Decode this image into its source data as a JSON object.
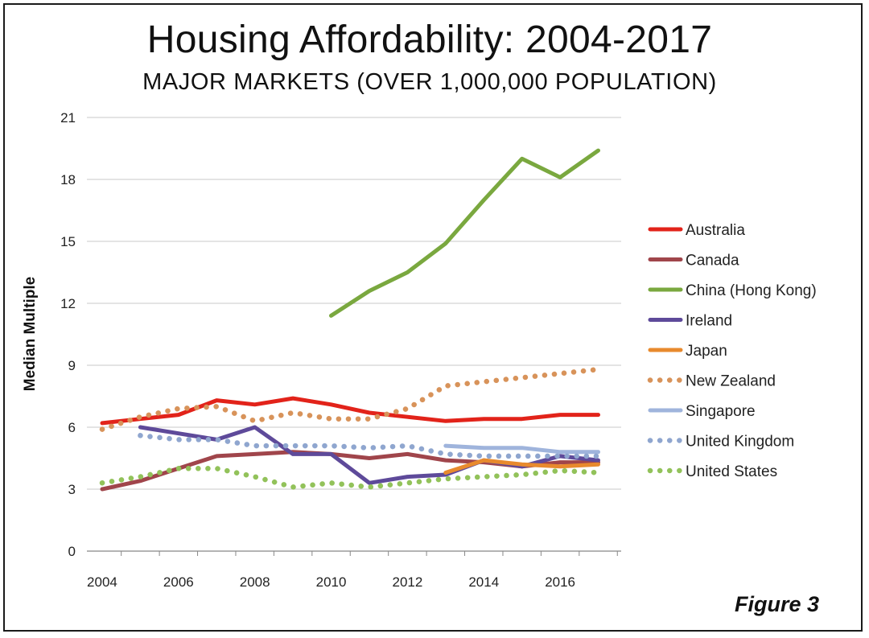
{
  "chart_data": {
    "type": "line",
    "title": "Housing Affordability: 2004-2017",
    "subtitle": "MAJOR MARKETS (OVER 1,000,000 POPULATION)",
    "ylabel": "Median Multiple",
    "xlabel": "",
    "figure_label": "Figure 3",
    "xlim": [
      2003.6,
      2017.6
    ],
    "ylim": [
      0,
      21
    ],
    "x_ticks": [
      "2004",
      "2006",
      "2008",
      "2010",
      "2012",
      "2014",
      "2016"
    ],
    "y_ticks": [
      "0",
      "3",
      "6",
      "9",
      "12",
      "15",
      "18",
      "21"
    ],
    "grid": "horizontal",
    "legend_position": "right",
    "x": [
      2004,
      2005,
      2006,
      2007,
      2008,
      2009,
      2010,
      2011,
      2012,
      2013,
      2014,
      2015,
      2016,
      2017
    ],
    "series": [
      {
        "name": "Australia",
        "color": "#e2231a",
        "style": "solid",
        "values": [
          6.2,
          6.4,
          6.6,
          7.3,
          7.1,
          7.4,
          7.1,
          6.7,
          6.5,
          6.3,
          6.4,
          6.4,
          6.6,
          6.6
        ]
      },
      {
        "name": "Canada",
        "color": "#a0454b",
        "style": "solid",
        "values": [
          3.0,
          3.4,
          4.0,
          4.6,
          4.7,
          4.8,
          4.7,
          4.5,
          4.7,
          4.4,
          4.3,
          4.1,
          4.3,
          4.3
        ]
      },
      {
        "name": "China (Hong Kong)",
        "color": "#7aa83f",
        "style": "solid",
        "values": [
          null,
          null,
          null,
          null,
          null,
          null,
          11.4,
          12.6,
          13.5,
          14.9,
          17.0,
          19.0,
          18.1,
          19.4
        ]
      },
      {
        "name": "Ireland",
        "color": "#5e4a9a",
        "style": "solid",
        "values": [
          null,
          6.0,
          5.7,
          5.4,
          6.0,
          4.7,
          4.7,
          3.3,
          3.6,
          3.7,
          4.4,
          4.1,
          4.6,
          4.4
        ]
      },
      {
        "name": "Japan",
        "color": "#e88a2d",
        "style": "solid",
        "values": [
          null,
          null,
          null,
          null,
          null,
          null,
          null,
          null,
          null,
          3.8,
          4.4,
          4.2,
          4.1,
          4.2
        ]
      },
      {
        "name": "New Zealand",
        "color": "#d8935a",
        "style": "dotted",
        "values": [
          5.9,
          6.5,
          6.9,
          7.0,
          6.3,
          6.7,
          6.4,
          6.4,
          6.9,
          8.0,
          8.2,
          8.4,
          8.6,
          8.8
        ]
      },
      {
        "name": "Singapore",
        "color": "#9fb4dc",
        "style": "solid",
        "values": [
          null,
          null,
          null,
          null,
          null,
          null,
          null,
          null,
          null,
          5.1,
          5.0,
          5.0,
          4.8,
          4.8
        ]
      },
      {
        "name": "United Kingdom",
        "color": "#8fa6cf",
        "style": "dotted",
        "values": [
          null,
          5.6,
          5.4,
          5.4,
          5.1,
          5.1,
          5.1,
          5.0,
          5.1,
          4.7,
          4.6,
          4.6,
          4.6,
          4.6
        ]
      },
      {
        "name": "United States",
        "color": "#92c25a",
        "style": "dotted",
        "values": [
          3.3,
          3.6,
          4.0,
          4.0,
          3.6,
          3.1,
          3.3,
          3.1,
          3.3,
          3.5,
          3.6,
          3.7,
          3.9,
          3.8
        ]
      }
    ]
  }
}
